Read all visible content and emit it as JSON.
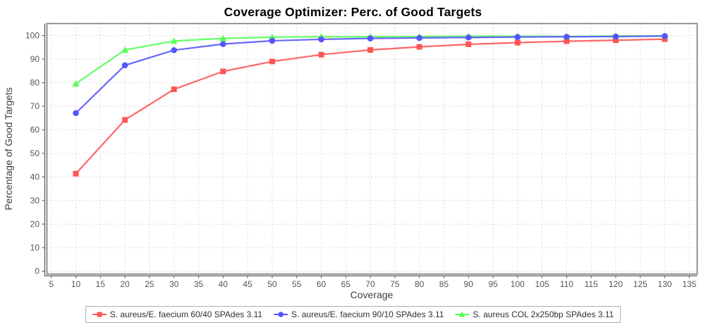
{
  "chart_data": {
    "type": "line",
    "title": "Coverage Optimizer: Perc. of Good Targets",
    "xlabel": "Coverage",
    "ylabel": "Percentage of Good Targets",
    "x": [
      10,
      20,
      30,
      40,
      50,
      60,
      70,
      80,
      90,
      100,
      110,
      120,
      130
    ],
    "series": [
      {
        "name": "S. aureus/E. faecium 60/40 SPAdes 3.11",
        "color": "#ff5555",
        "marker": "square",
        "values": [
          41.4,
          64.2,
          77.2,
          84.8,
          89.0,
          91.9,
          93.9,
          95.2,
          96.3,
          97.0,
          97.6,
          98.0,
          98.5
        ]
      },
      {
        "name": "S. aureus/E. faecium 90/10 SPAdes 3.11",
        "color": "#5555ff",
        "marker": "circle",
        "values": [
          67.1,
          87.4,
          93.8,
          96.4,
          97.8,
          98.4,
          98.8,
          99.0,
          99.2,
          99.4,
          99.5,
          99.6,
          99.8
        ]
      },
      {
        "name": "S. aureus COL 2x250bp SPAdes 3.11",
        "color": "#55ff55",
        "marker": "triangle",
        "values": [
          79.6,
          93.9,
          97.7,
          98.8,
          99.3,
          99.5,
          99.5,
          99.6,
          99.7,
          99.7,
          99.6,
          99.8,
          99.9
        ]
      }
    ],
    "x_ticks": {
      "start": 5,
      "end": 135,
      "step": 5
    },
    "y_ticks": {
      "start": 0,
      "end": 100,
      "step": 10
    },
    "xlim": [
      4.1,
      136.6
    ],
    "ylim": [
      -1.2,
      105.1
    ],
    "grid": true,
    "legend_position": "bottom",
    "colors": {
      "grid": "#d9d9d9",
      "plot_border": "#7a7a7a",
      "axis_line": "#555555",
      "tick_text": "#555555",
      "axis_label_text": "#3f3f3f",
      "title_text": "#000000",
      "legend_border": "#adadad",
      "legend_text": "#303030",
      "background": "#ffffff"
    }
  }
}
